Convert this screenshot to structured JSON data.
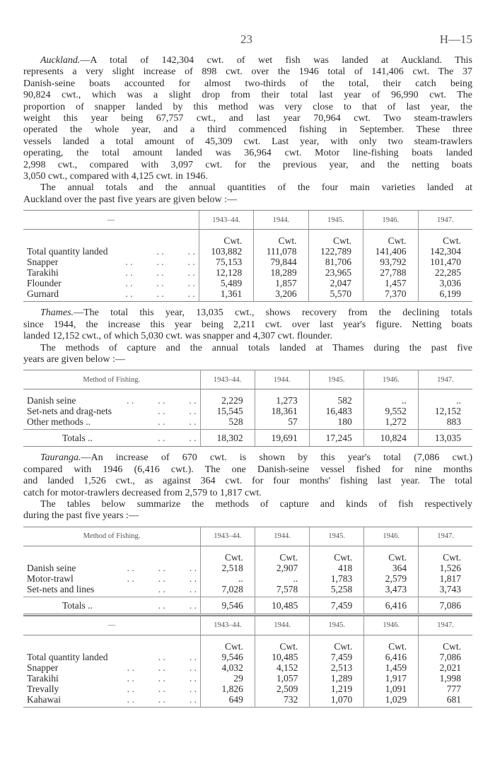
{
  "header": {
    "page_number": "23",
    "reference": "H—15"
  },
  "paragraphs": {
    "auckland": {
      "lead": "Auckland.",
      "lines": [
        "—A total of 142,304 cwt. of wet fish was landed at Auckland. This",
        "represents a very slight increase of 898 cwt. over the 1946 total of 141,406 cwt. The 37",
        "Danish-seine boats accounted for almost two-thirds of the total, their catch being",
        "90,824 cwt., which was a slight drop from their total last year of 96,990 cwt. The",
        "proportion of snapper landed by this method was very close to that of last year, the",
        "weight this year being 67,757 cwt., and last year 70,964 cwt. Two steam-trawlers",
        "operated the whole year, and a third commenced fishing in September. These three",
        "vessels landed a total amount of 45,309 cwt. Last year, with only two steam-trawlers",
        "operating, the total amount landed was 36,964 cwt. Motor line-fishing boats landed",
        "2,998 cwt., compared with 3,097 cwt. for the previous year, and the netting boats",
        "3,050 cwt., compared with 4,125 cwt. in 1946."
      ]
    },
    "auckland_intro": {
      "lines": [
        "The annual totals and the annual quantities of the four main varieties landed at",
        "Auckland over the past five years are given below :—"
      ]
    },
    "thames": {
      "lead": "Thames.",
      "lines": [
        "—The total this year, 13,035 cwt., shows recovery from the declining totals",
        "since 1944, the increase this year being 2,211 cwt. over last year's figure. Netting boats",
        "landed 12,152 cwt., of which 5,030 cwt. was snapper and 4,307 cwt. flounder."
      ]
    },
    "thames_intro": {
      "lines": [
        "The methods of capture and the annual totals landed at Thames during the past five",
        "years are given below :—"
      ]
    },
    "tauranga": {
      "lead": "Tauranga.",
      "lines": [
        "—An increase of 670 cwt. is shown by this year's total (7,086 cwt.)",
        "compared with 1946 (6,416 cwt.). The one Danish-seine vessel fished for nine months",
        "and landed 1,526 cwt., as against 364 cwt. for four months' fishing last year. The total",
        "catch for motor-trawlers decreased from 2,579 to 1,817 cwt."
      ]
    },
    "tauranga_intro": {
      "lines": [
        "The tables below summarize the methods of capture and kinds of fish respectively",
        "during the past five years :—"
      ]
    }
  },
  "tables": [
    {
      "id": "auckland-varieties",
      "headers": [
        "—",
        "1943–44.",
        "1944.",
        "1945.",
        "1946.",
        "1947."
      ],
      "unit": "Cwt.",
      "rows": [
        {
          "label": "Total quantity landed",
          "dots": 2,
          "values": [
            "103,882",
            "111,078",
            "122,789",
            "141,406",
            "142,304"
          ]
        },
        {
          "label": "Snapper",
          "dots": 3,
          "values": [
            "75,153",
            "79,844",
            "81,706",
            "93,792",
            "101,470"
          ]
        },
        {
          "label": "Tarakihi",
          "dots": 3,
          "values": [
            "12,128",
            "18,289",
            "23,965",
            "27,788",
            "22,285"
          ]
        },
        {
          "label": "Flounder",
          "dots": 3,
          "values": [
            "5,489",
            "1,857",
            "2,047",
            "1,457",
            "3,036"
          ]
        },
        {
          "label": "Gurnard",
          "dots": 3,
          "values": [
            "1,361",
            "3,206",
            "5,570",
            "7,370",
            "6,199"
          ]
        }
      ]
    },
    {
      "id": "thames-methods",
      "headers": [
        "Method of Fishing.",
        "1943–44.",
        "1944.",
        "1945.",
        "1946.",
        "1947."
      ],
      "unit": "",
      "rows": [
        {
          "label": "Danish seine",
          "dots": 3,
          "values": [
            "2,229",
            "1,273",
            "582",
            "..",
            ".."
          ]
        },
        {
          "label": "Set-nets and drag-nets",
          "dots": 2,
          "values": [
            "15,545",
            "18,361",
            "16,483",
            "9,552",
            "12,152"
          ]
        },
        {
          "label": "Other methods ..",
          "dots": 2,
          "values": [
            "528",
            "57",
            "180",
            "1,272",
            "883"
          ]
        }
      ],
      "totals": {
        "label": "Totals ..",
        "dots": 2,
        "values": [
          "18,302",
          "19,691",
          "17,245",
          "10,824",
          "13,035"
        ]
      }
    },
    {
      "id": "tauranga-methods",
      "headers": [
        "Method of Fishing.",
        "1943–44.",
        "1944.",
        "1945.",
        "1946.",
        "1947."
      ],
      "unit": "Cwt.",
      "rows": [
        {
          "label": "Danish seine",
          "dots": 3,
          "values": [
            "2,518",
            "2,907",
            "418",
            "364",
            "1,526"
          ]
        },
        {
          "label": "Motor-trawl",
          "dots": 3,
          "values": [
            "..",
            "..",
            "1,783",
            "2,579",
            "1,817"
          ]
        },
        {
          "label": "Set-nets and lines",
          "dots": 2,
          "values": [
            "7,028",
            "7,578",
            "5,258",
            "3,473",
            "3,743"
          ]
        }
      ],
      "totals": {
        "label": "Totals ..",
        "dots": 2,
        "values": [
          "9,546",
          "10,485",
          "7,459",
          "6,416",
          "7,086"
        ]
      }
    },
    {
      "id": "tauranga-varieties",
      "headers": [
        "—",
        "1943–44.",
        "1944.",
        "1945.",
        "1946.",
        "1947."
      ],
      "unit": "Cwt.",
      "rows": [
        {
          "label": "Total quantity landed",
          "dots": 2,
          "values": [
            "9,546",
            "10,485",
            "7,459",
            "6,416",
            "7,086"
          ]
        },
        {
          "label": "Snapper",
          "dots": 3,
          "values": [
            "4,032",
            "4,152",
            "2,513",
            "1,459",
            "2,021"
          ]
        },
        {
          "label": "Tarakihi",
          "dots": 3,
          "values": [
            "29",
            "1,057",
            "1,289",
            "1,917",
            "1,998"
          ]
        },
        {
          "label": "Trevally",
          "dots": 3,
          "values": [
            "1,826",
            "2,509",
            "1,219",
            "1,091",
            "777"
          ]
        },
        {
          "label": "Kahawai",
          "dots": 3,
          "values": [
            "649",
            "732",
            "1,070",
            "1,029",
            "681"
          ]
        }
      ]
    }
  ]
}
